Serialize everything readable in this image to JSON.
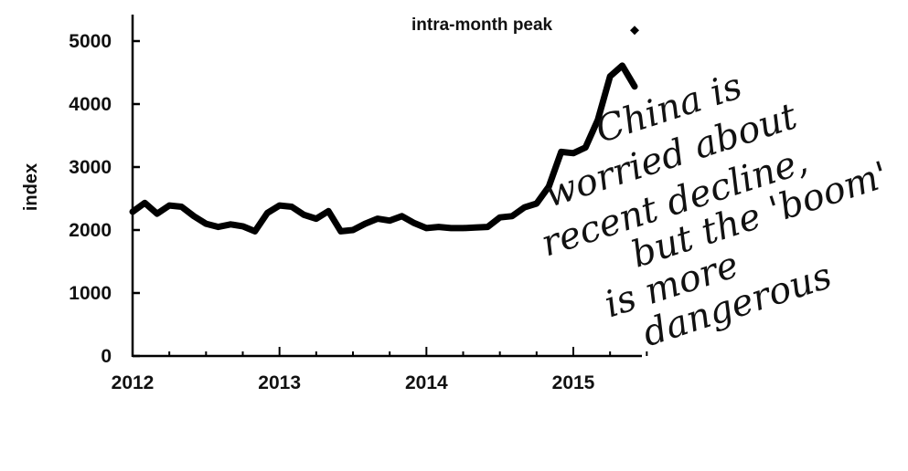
{
  "chart_data": {
    "type": "line",
    "title": "",
    "xlabel": "",
    "ylabel": "index",
    "xlim": [
      2012,
      2015.5
    ],
    "ylim": [
      0,
      5000
    ],
    "x_ticks": [
      2012,
      2013,
      2014,
      2015
    ],
    "x_tick_labels": [
      "2012",
      "2013",
      "2014",
      "2015"
    ],
    "y_ticks": [
      0,
      1000,
      2000,
      3000,
      4000,
      5000
    ],
    "y_tick_labels": [
      "0",
      "1000",
      "2000",
      "3000",
      "4000",
      "5000"
    ],
    "grid": false,
    "series": [
      {
        "name": "",
        "color": "#000000",
        "x": [
          2012.0,
          2012.083,
          2012.167,
          2012.25,
          2012.333,
          2012.417,
          2012.5,
          2012.583,
          2012.667,
          2012.75,
          2012.833,
          2012.917,
          2013.0,
          2013.083,
          2013.167,
          2013.25,
          2013.333,
          2013.417,
          2013.5,
          2013.583,
          2013.667,
          2013.75,
          2013.833,
          2013.917,
          2014.0,
          2014.083,
          2014.167,
          2014.25,
          2014.333,
          2014.417,
          2014.5,
          2014.583,
          2014.667,
          2014.75,
          2014.833,
          2014.917,
          2015.0,
          2015.083,
          2015.167,
          2015.25,
          2015.333,
          2015.417
        ],
        "values": [
          2290,
          2430,
          2260,
          2390,
          2370,
          2220,
          2100,
          2050,
          2090,
          2060,
          1980,
          2270,
          2390,
          2370,
          2240,
          2180,
          2300,
          1980,
          2000,
          2100,
          2180,
          2150,
          2220,
          2110,
          2030,
          2050,
          2030,
          2030,
          2040,
          2050,
          2200,
          2220,
          2360,
          2420,
          2690,
          3240,
          3220,
          3310,
          3750,
          4440,
          4610,
          4280
        ]
      },
      {
        "name": "intra-month peak",
        "type": "scatter",
        "x": [
          2015.417
        ],
        "values": [
          5170
        ]
      }
    ],
    "annotations": [
      {
        "text": "intra-month peak",
        "x": 2015.417,
        "y": 5170,
        "anchor": "left of point"
      },
      {
        "text": "China is worried about recent decline, but the 'boom' is more dangerous",
        "lines": [
          "China is",
          "worried about",
          "recent decline,",
          "but  the 'boom'",
          "is more",
          "dangerous"
        ],
        "style": "handwritten, rotated",
        "placement": "right of line"
      }
    ]
  }
}
